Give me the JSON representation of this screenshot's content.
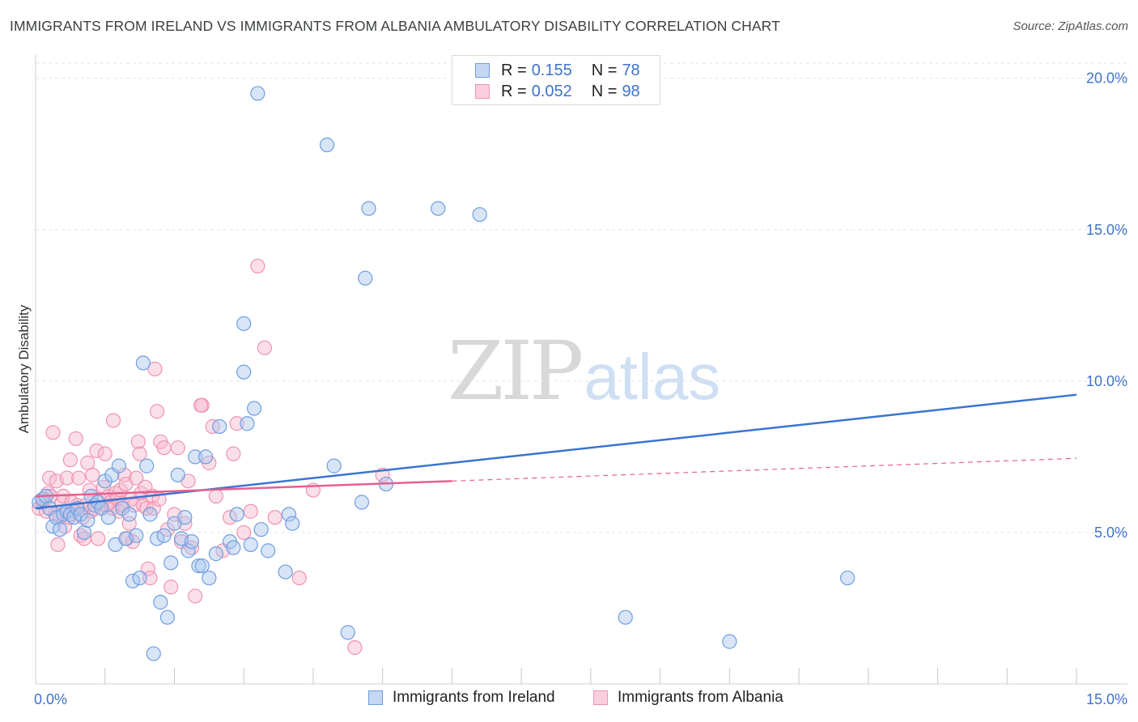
{
  "title": "IMMIGRANTS FROM IRELAND VS IMMIGRANTS FROM ALBANIA AMBULATORY DISABILITY CORRELATION CHART",
  "source": "Source: ZipAtlas.com",
  "watermark": {
    "zip": "ZIP",
    "atlas": "atlas"
  },
  "legend": {
    "ireland": {
      "r_label": "R =",
      "r_value": "0.155",
      "n_label": "N =",
      "n_value": "78"
    },
    "albania": {
      "r_label": "R =",
      "r_value": "0.052",
      "n_label": "N =",
      "n_value": "98"
    }
  },
  "colors": {
    "ireland_fill": "#a8c6ee",
    "ireland_stroke": "#6f9ee0",
    "ireland_line": "#3a74d0",
    "albania_fill": "#f6b7cb",
    "albania_stroke": "#ef93b2",
    "albania_line": "#e5608f",
    "tick_label": "#3f73c9",
    "grid": "#e3e3e3"
  },
  "chart_data": {
    "type": "scatter",
    "title": "IMMIGRANTS FROM IRELAND VS IMMIGRANTS FROM ALBANIA AMBULATORY DISABILITY CORRELATION CHART",
    "xlabel": "",
    "ylabel": "Ambulatory Disability",
    "xlim": [
      0,
      15
    ],
    "ylim": [
      0,
      20.5
    ],
    "x_tick_labels": {
      "min": "0.0%",
      "max": "15.0%"
    },
    "y_ticks": [
      5,
      10,
      15,
      20
    ],
    "y_tick_labels": [
      "5.0%",
      "10.0%",
      "15.0%",
      "20.0%"
    ],
    "series": [
      {
        "name": "Immigrants from Ireland",
        "r": 0.155,
        "n": 78,
        "trend": {
          "x": [
            0,
            15
          ],
          "y": [
            5.8,
            9.55
          ],
          "style": "solid"
        },
        "points": [
          [
            0.05,
            6.0
          ],
          [
            0.1,
            6.1
          ],
          [
            0.15,
            6.2
          ],
          [
            0.2,
            5.8
          ],
          [
            0.25,
            5.2
          ],
          [
            0.3,
            5.5
          ],
          [
            0.35,
            5.1
          ],
          [
            0.4,
            5.6
          ],
          [
            0.45,
            5.7
          ],
          [
            0.5,
            5.6
          ],
          [
            0.55,
            5.5
          ],
          [
            0.6,
            5.8
          ],
          [
            0.65,
            5.6
          ],
          [
            0.7,
            5.0
          ],
          [
            0.75,
            5.4
          ],
          [
            0.8,
            6.2
          ],
          [
            0.85,
            5.9
          ],
          [
            0.9,
            6.0
          ],
          [
            0.95,
            5.8
          ],
          [
            1.0,
            6.7
          ],
          [
            1.05,
            5.5
          ],
          [
            1.1,
            6.9
          ],
          [
            1.15,
            4.6
          ],
          [
            1.2,
            7.2
          ],
          [
            1.25,
            5.8
          ],
          [
            1.3,
            4.8
          ],
          [
            1.35,
            5.6
          ],
          [
            1.4,
            3.4
          ],
          [
            1.45,
            4.9
          ],
          [
            1.5,
            3.5
          ],
          [
            1.55,
            10.6
          ],
          [
            1.6,
            7.2
          ],
          [
            1.65,
            5.6
          ],
          [
            1.7,
            1.0
          ],
          [
            1.75,
            4.8
          ],
          [
            1.8,
            2.7
          ],
          [
            1.85,
            4.9
          ],
          [
            1.9,
            2.2
          ],
          [
            1.95,
            4.0
          ],
          [
            2.0,
            5.3
          ],
          [
            2.05,
            6.9
          ],
          [
            2.1,
            4.8
          ],
          [
            2.15,
            5.5
          ],
          [
            2.2,
            4.4
          ],
          [
            2.25,
            4.7
          ],
          [
            2.3,
            7.5
          ],
          [
            2.35,
            3.9
          ],
          [
            2.4,
            3.9
          ],
          [
            2.45,
            7.5
          ],
          [
            2.5,
            3.5
          ],
          [
            2.6,
            4.3
          ],
          [
            2.65,
            8.5
          ],
          [
            2.8,
            4.7
          ],
          [
            2.85,
            4.5
          ],
          [
            2.9,
            5.6
          ],
          [
            3.0,
            10.3
          ],
          [
            3.05,
            8.6
          ],
          [
            3.1,
            4.6
          ],
          [
            3.15,
            9.1
          ],
          [
            3.25,
            5.1
          ],
          [
            3.35,
            4.4
          ],
          [
            3.0,
            11.9
          ],
          [
            3.6,
            3.7
          ],
          [
            3.65,
            5.6
          ],
          [
            3.7,
            5.3
          ],
          [
            3.2,
            19.5
          ],
          [
            4.2,
            17.8
          ],
          [
            4.5,
            1.7
          ],
          [
            4.7,
            6.0
          ],
          [
            4.75,
            13.4
          ],
          [
            4.8,
            15.7
          ],
          [
            5.05,
            6.6
          ],
          [
            5.8,
            15.7
          ],
          [
            6.4,
            15.5
          ],
          [
            8.5,
            2.2
          ],
          [
            10.0,
            1.4
          ],
          [
            11.7,
            3.5
          ],
          [
            4.3,
            7.2
          ]
        ]
      },
      {
        "name": "Immigrants from Albania",
        "r": 0.052,
        "n": 98,
        "trend": {
          "x": [
            0,
            6
          ],
          "y": [
            6.2,
            6.7
          ],
          "style": "solid"
        },
        "trend_ext": {
          "x": [
            6,
            15
          ],
          "y": [
            6.7,
            7.45
          ],
          "style": "dashed"
        },
        "points": [
          [
            0.05,
            5.8
          ],
          [
            0.1,
            6.0
          ],
          [
            0.12,
            6.1
          ],
          [
            0.15,
            5.7
          ],
          [
            0.18,
            6.3
          ],
          [
            0.2,
            6.8
          ],
          [
            0.22,
            6.2
          ],
          [
            0.25,
            8.3
          ],
          [
            0.28,
            5.6
          ],
          [
            0.3,
            6.7
          ],
          [
            0.32,
            4.6
          ],
          [
            0.35,
            5.5
          ],
          [
            0.38,
            6.0
          ],
          [
            0.4,
            6.2
          ],
          [
            0.42,
            5.2
          ],
          [
            0.45,
            6.8
          ],
          [
            0.48,
            5.5
          ],
          [
            0.5,
            7.4
          ],
          [
            0.52,
            6.0
          ],
          [
            0.55,
            5.7
          ],
          [
            0.58,
            8.1
          ],
          [
            0.6,
            5.9
          ],
          [
            0.62,
            6.8
          ],
          [
            0.65,
            4.9
          ],
          [
            0.68,
            5.5
          ],
          [
            0.7,
            4.8
          ],
          [
            0.72,
            5.9
          ],
          [
            0.75,
            7.3
          ],
          [
            0.78,
            6.4
          ],
          [
            0.8,
            5.7
          ],
          [
            0.82,
            6.9
          ],
          [
            0.85,
            5.8
          ],
          [
            0.88,
            7.7
          ],
          [
            0.9,
            4.8
          ],
          [
            0.92,
            6.1
          ],
          [
            0.95,
            5.8
          ],
          [
            0.98,
            6.5
          ],
          [
            1.0,
            7.6
          ],
          [
            1.02,
            5.9
          ],
          [
            1.05,
            6.2
          ],
          [
            1.08,
            6.0
          ],
          [
            1.1,
            5.8
          ],
          [
            1.12,
            8.7
          ],
          [
            1.15,
            6.3
          ],
          [
            1.18,
            6.1
          ],
          [
            1.2,
            5.7
          ],
          [
            1.22,
            6.4
          ],
          [
            1.25,
            5.9
          ],
          [
            1.28,
            6.9
          ],
          [
            1.3,
            6.6
          ],
          [
            1.32,
            4.8
          ],
          [
            1.35,
            5.3
          ],
          [
            1.38,
            6.1
          ],
          [
            1.4,
            4.7
          ],
          [
            1.42,
            5.9
          ],
          [
            1.45,
            6.8
          ],
          [
            1.48,
            8.0
          ],
          [
            1.5,
            7.6
          ],
          [
            1.52,
            6.3
          ],
          [
            1.55,
            5.9
          ],
          [
            1.58,
            6.5
          ],
          [
            1.6,
            5.8
          ],
          [
            1.62,
            3.8
          ],
          [
            1.65,
            3.5
          ],
          [
            1.68,
            6.2
          ],
          [
            1.7,
            5.8
          ],
          [
            1.72,
            10.4
          ],
          [
            1.75,
            9.0
          ],
          [
            1.78,
            6.1
          ],
          [
            1.8,
            8.0
          ],
          [
            1.85,
            7.8
          ],
          [
            1.9,
            5.1
          ],
          [
            1.95,
            3.2
          ],
          [
            2.0,
            5.6
          ],
          [
            2.05,
            7.8
          ],
          [
            2.1,
            4.7
          ],
          [
            2.15,
            5.3
          ],
          [
            2.2,
            6.7
          ],
          [
            2.25,
            4.5
          ],
          [
            2.3,
            2.9
          ],
          [
            2.4,
            9.2
          ],
          [
            2.5,
            7.3
          ],
          [
            2.55,
            8.5
          ],
          [
            2.6,
            6.2
          ],
          [
            2.7,
            4.4
          ],
          [
            2.8,
            5.5
          ],
          [
            2.85,
            7.6
          ],
          [
            2.9,
            8.6
          ],
          [
            3.0,
            5.0
          ],
          [
            3.1,
            5.7
          ],
          [
            3.2,
            13.8
          ],
          [
            3.3,
            11.1
          ],
          [
            3.45,
            5.5
          ],
          [
            3.8,
            3.5
          ],
          [
            4.0,
            6.4
          ],
          [
            4.6,
            1.2
          ],
          [
            5.0,
            6.9
          ],
          [
            2.38,
            9.2
          ]
        ]
      }
    ]
  },
  "bottom_legend": {
    "ireland_label": "Immigrants from Ireland",
    "albania_label": "Immigrants from Albania"
  }
}
